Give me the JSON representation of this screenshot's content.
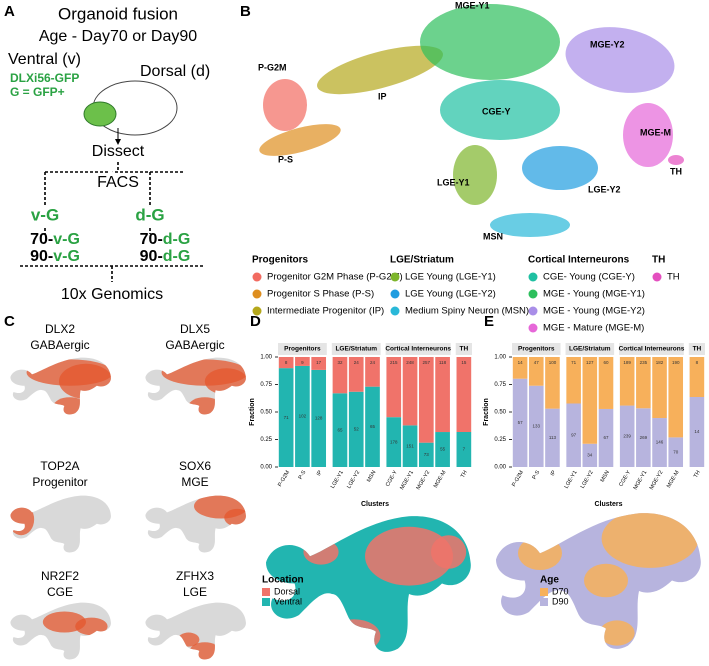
{
  "panel_labels": [
    "A",
    "B",
    "C",
    "D",
    "E"
  ],
  "panel_a": {
    "title": "Organoid fusion",
    "subtitle": "Age - Day70 or Day90",
    "ventral": "Ventral (v)",
    "dorsal": "Dorsal (d)",
    "reporter": "DLXi56-GFP",
    "gfp": "G = GFP+",
    "dissect": "Dissect",
    "facs": "FACS",
    "fractions": [
      "v-G",
      "d-G"
    ],
    "samples": [
      {
        "age": "70-",
        "sample": "v-G"
      },
      {
        "age": "90-",
        "sample": "v-G"
      },
      {
        "age": "70-",
        "sample": "d-G"
      },
      {
        "age": "90-",
        "sample": "d-G"
      }
    ],
    "output": "10x Genomics"
  },
  "umap": {
    "legend_groups": [
      {
        "title": "Progenitors",
        "items": [
          {
            "name": "Progenitor G2M Phase (P-G2M)",
            "label": "P-G2M",
            "color": "#f26b61"
          },
          {
            "name": "Progenitor S Phase (P-S)",
            "label": "P-S",
            "color": "#de8e1f"
          },
          {
            "name": "Intermediate Progenitor (IP)",
            "label": "IP",
            "color": "#b5a81c"
          }
        ]
      },
      {
        "title": "LGE/Striatum",
        "items": [
          {
            "name": "LGE Young (LGE-Y1)",
            "label": "LGE-Y1",
            "color": "#7db52b"
          },
          {
            "name": "LGE Young (LGE-Y2)",
            "label": "LGE-Y2",
            "color": "#1f9de0"
          },
          {
            "name": "Medium Spiny Neuron (MSN)",
            "label": "MSN",
            "color": "#29b8d8"
          }
        ]
      },
      {
        "title": "Cortical Interneurons",
        "items": [
          {
            "name": "CGE- Young (CGE-Y)",
            "label": "CGE-Y",
            "color": "#1fc0a2"
          },
          {
            "name": "MGE - Young (MGE-Y1)",
            "label": "MGE-Y1",
            "color": "#2dbf5d"
          },
          {
            "name": "MGE - Young (MGE-Y2)",
            "label": "MGE-Y2",
            "color": "#a98ee8"
          },
          {
            "name": "MGE - Mature (MGE-M)",
            "label": "MGE-M",
            "color": "#e667d8"
          }
        ]
      },
      {
        "title": "TH",
        "items": [
          {
            "name": "TH",
            "label": "TH",
            "color": "#e44fbf"
          }
        ]
      }
    ]
  },
  "feature_plots": [
    {
      "gene": "DLX2",
      "label": "GABAergic"
    },
    {
      "gene": "DLX5",
      "label": "GABAergic"
    },
    {
      "gene": "TOP2A",
      "label": "Progenitor"
    },
    {
      "gene": "SOX6",
      "label": "MGE"
    },
    {
      "gene": "NR2F2",
      "label": "CGE"
    },
    {
      "gene": "ZFHX3",
      "label": "LGE"
    }
  ],
  "chart_data": [
    {
      "type": "bar",
      "stacking": "percent",
      "x_label": "Clusters",
      "y_label": "Fraction",
      "legend_title": "Location",
      "categories": [
        "P-G2M",
        "P-S",
        "IP",
        "LGE-Y1",
        "LGE-Y2",
        "MSN",
        "CGE-Y",
        "MGE-Y1",
        "MGE-Y2",
        "MGE-M",
        "TH"
      ],
      "groups": [
        "Progenitors",
        "Progenitors",
        "Progenitors",
        "LGE/Striatum",
        "LGE/Striatum",
        "LGE/Striatum",
        "Cortical Interneurons",
        "Cortical Interneurons",
        "Cortical Interneurons",
        "Cortical Interneurons",
        "TH"
      ],
      "series": [
        {
          "name": "Ventral",
          "color": "#22b5b0",
          "values": [
            71,
            102,
            128,
            65,
            52,
            65,
            178,
            151,
            73,
            55,
            7
          ]
        },
        {
          "name": "Dorsal",
          "color": "#f0736a",
          "values": [
            8,
            9,
            17,
            32,
            24,
            24,
            215,
            248,
            257,
            118,
            15
          ]
        }
      ],
      "ylim": [
        0,
        1
      ],
      "yticks": [
        {
          "value": 0,
          "label": "0.00"
        },
        {
          "value": 0.25,
          "label": "0.25"
        },
        {
          "value": 0.5,
          "label": "0.50"
        },
        {
          "value": 0.75,
          "label": "0.75"
        },
        {
          "value": 1,
          "label": "1.00"
        }
      ]
    },
    {
      "type": "bar",
      "stacking": "percent",
      "x_label": "Clusters",
      "y_label": "Fraction",
      "legend_title": "Age",
      "categories": [
        "P-G2M",
        "P-S",
        "IP",
        "LGE-Y1",
        "LGE-Y2",
        "MSN",
        "CGE-Y",
        "MGE-Y1",
        "MGE-Y2",
        "MGE-M",
        "TH"
      ],
      "groups": [
        "Progenitors",
        "Progenitors",
        "Progenitors",
        "LGE/Striatum",
        "LGE/Striatum",
        "LGE/Striatum",
        "Cortical Interneurons",
        "Cortical Interneurons",
        "Cortical Interneurons",
        "Cortical Interneurons",
        "TH"
      ],
      "series": [
        {
          "name": "D90",
          "color": "#b7b4de",
          "values": [
            57,
            133,
            113,
            97,
            34,
            67,
            239,
            269,
            146,
            70,
            14
          ]
        },
        {
          "name": "D70",
          "color": "#f7b05b",
          "values": [
            14,
            47,
            100,
            71,
            127,
            60,
            189,
            235,
            182,
            190,
            8
          ]
        }
      ],
      "ylim": [
        0,
        1
      ],
      "yticks": [
        {
          "value": 0,
          "label": "0.00"
        },
        {
          "value": 0.25,
          "label": "0.25"
        },
        {
          "value": 0.5,
          "label": "0.50"
        },
        {
          "value": 0.75,
          "label": "0.75"
        },
        {
          "value": 1,
          "label": "1.00"
        }
      ]
    }
  ]
}
